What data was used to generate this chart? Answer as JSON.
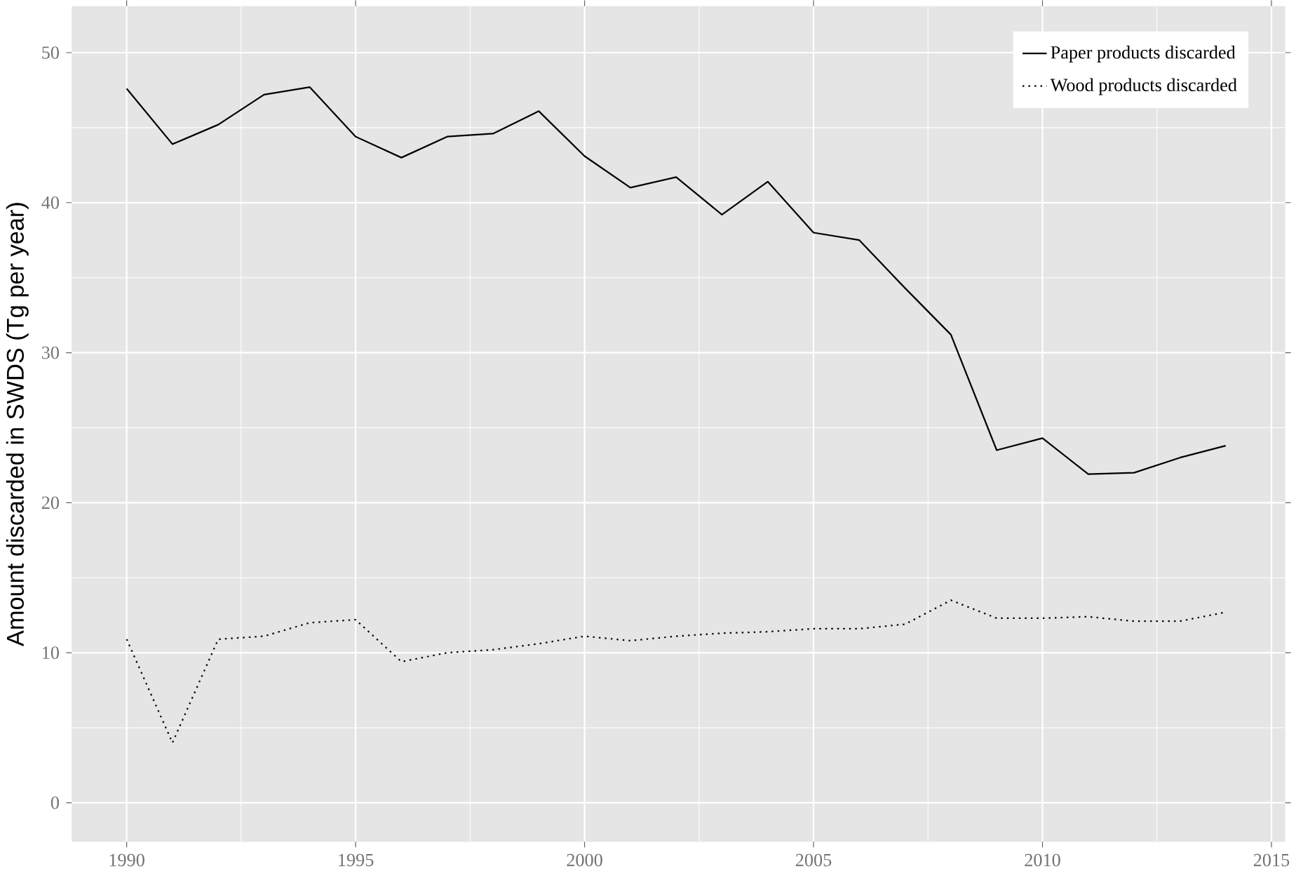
{
  "chart_data": {
    "type": "line",
    "ylabel": "Amount discarded in SWDS (Tg per year)",
    "x": [
      1990,
      1991,
      1992,
      1993,
      1994,
      1995,
      1996,
      1997,
      1998,
      1999,
      2000,
      2001,
      2002,
      2003,
      2004,
      2005,
      2006,
      2007,
      2008,
      2009,
      2010,
      2011,
      2012,
      2013,
      2014
    ],
    "series": [
      {
        "name": "Paper products discarded",
        "color": "#000000",
        "line_style": "solid",
        "values": [
          47.6,
          43.9,
          45.2,
          47.2,
          47.7,
          44.4,
          43.0,
          44.4,
          44.6,
          46.1,
          43.1,
          41.0,
          41.7,
          39.2,
          41.4,
          38.0,
          37.5,
          34.3,
          31.2,
          23.5,
          24.3,
          21.9,
          22.0,
          23.0,
          23.8
        ]
      },
      {
        "name": "Wood products discarded",
        "color": "#000000",
        "line_style": "dotted",
        "values": [
          10.9,
          4.0,
          10.9,
          11.1,
          12.0,
          12.2,
          9.4,
          10.0,
          10.2,
          10.6,
          11.1,
          10.8,
          11.1,
          11.3,
          11.4,
          11.6,
          11.6,
          11.9,
          13.5,
          12.3,
          12.3,
          12.4,
          12.1,
          12.1,
          12.7
        ]
      }
    ],
    "xlim": [
      1988.8,
      2015.3
    ],
    "ylim": [
      -2.6,
      53.1
    ],
    "xticks": [
      1990,
      1995,
      2000,
      2005,
      2010,
      2015
    ],
    "yticks": [
      0,
      10,
      20,
      30,
      40,
      50
    ],
    "grid": true,
    "legend": "top right"
  }
}
